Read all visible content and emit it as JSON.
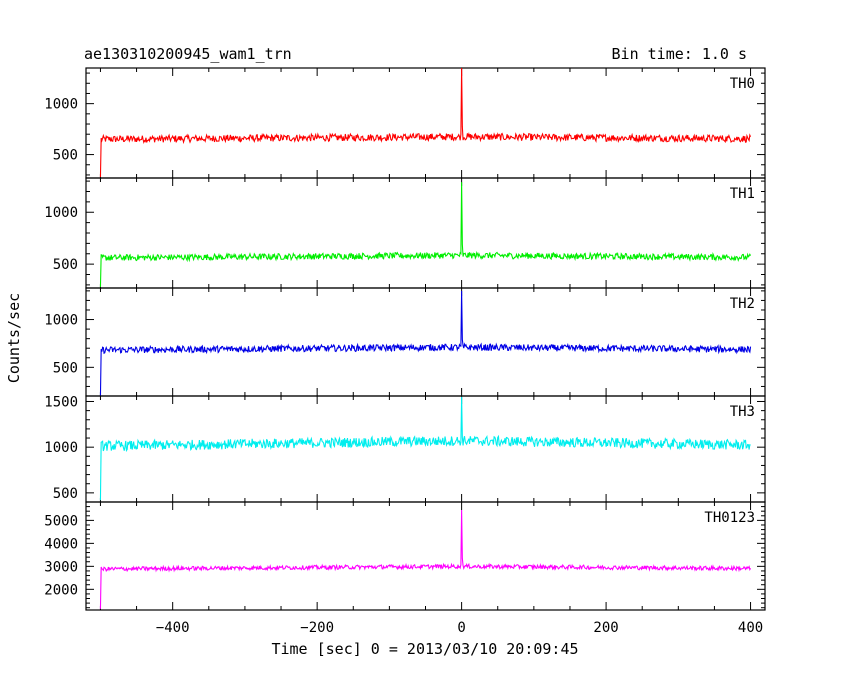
{
  "header": {
    "title": "ae130310200945_wam1_trn",
    "bin_time": "Bin time: 1.0 s"
  },
  "chart_data": {
    "type": "line",
    "xlabel": "Time [sec] 0 = 2013/03/10 20:09:45",
    "ylabel": "Counts/sec",
    "xlim": [
      -520,
      420
    ],
    "x_ticks": [
      -400,
      -200,
      0,
      200,
      400
    ],
    "x_tick_labels": [
      "−400",
      "−200",
      "0",
      "200",
      "400"
    ],
    "series": [
      {
        "name": "TH0",
        "color": "#ff0000",
        "ylim": [
          270,
          1350
        ],
        "y_ticks": [
          500,
          1000
        ],
        "y_tick_labels": [
          "500",
          "1000"
        ],
        "start_x": -500,
        "start_y": 280,
        "end_x": 400,
        "baseline": 650,
        "noise": 35,
        "peak_x": 0,
        "peak_y": 1350,
        "bump": 25
      },
      {
        "name": "TH1",
        "color": "#00ee00",
        "ylim": [
          270,
          1330
        ],
        "y_ticks": [
          500,
          1000
        ],
        "y_tick_labels": [
          "500",
          "1000"
        ],
        "start_x": -500,
        "start_y": 280,
        "end_x": 400,
        "baseline": 560,
        "noise": 30,
        "peak_x": 0,
        "peak_y": 1290,
        "bump": 25
      },
      {
        "name": "TH2",
        "color": "#0000e6",
        "ylim": [
          200,
          1330
        ],
        "y_ticks": [
          500,
          1000
        ],
        "y_tick_labels": [
          "500",
          "1000"
        ],
        "start_x": -500,
        "start_y": 200,
        "end_x": 400,
        "baseline": 680,
        "noise": 35,
        "peak_x": 0,
        "peak_y": 1300,
        "bump": 30
      },
      {
        "name": "TH3",
        "color": "#00eeee",
        "ylim": [
          400,
          1560
        ],
        "y_ticks": [
          500,
          1000,
          1500
        ],
        "y_tick_labels": [
          "500",
          "1000",
          "1500"
        ],
        "start_x": -500,
        "start_y": 420,
        "end_x": 400,
        "baseline": 1010,
        "noise": 55,
        "peak_x": 0,
        "peak_y": 1550,
        "bump": 60
      },
      {
        "name": "TH0123",
        "color": "#ff00ff",
        "ylim": [
          1100,
          5800
        ],
        "y_ticks": [
          2000,
          3000,
          4000,
          5000
        ],
        "y_tick_labels": [
          "2000",
          "3000",
          "4000",
          "5000"
        ],
        "start_x": -500,
        "start_y": 1150,
        "end_x": 400,
        "baseline": 2880,
        "noise": 90,
        "peak_x": 0,
        "peak_y": 5450,
        "bump": 120
      }
    ]
  }
}
